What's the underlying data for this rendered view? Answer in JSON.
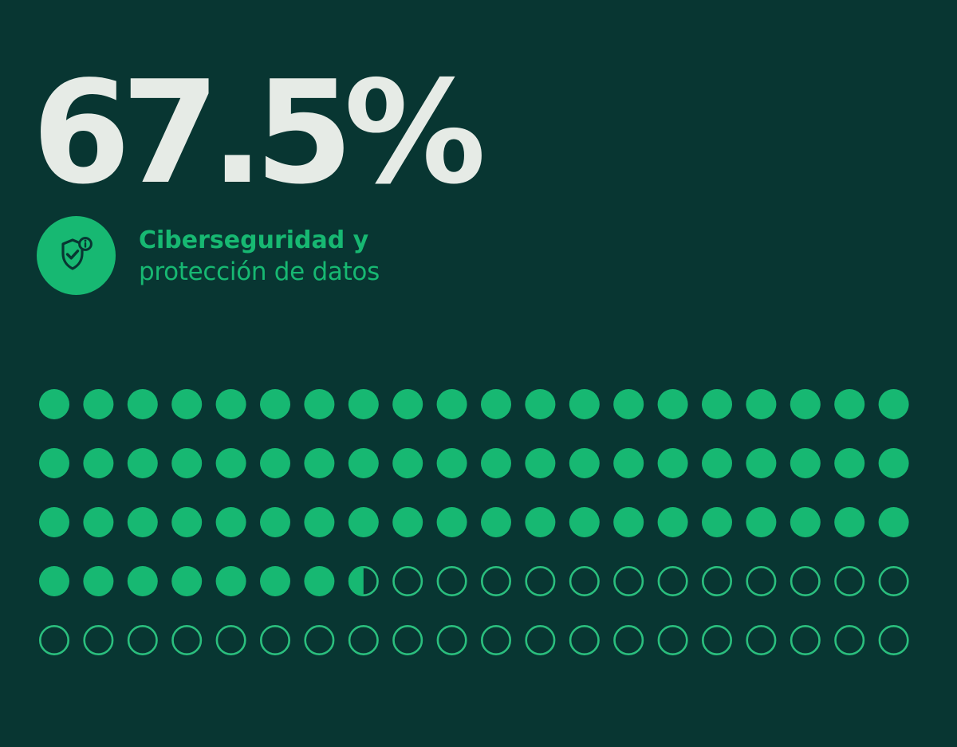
{
  "stat": {
    "value_text": "67.5%"
  },
  "category": {
    "icon": "shield-check-icon",
    "line1": "Ciberseguridad y",
    "line2": "protección de datos"
  },
  "colors": {
    "background": "#083632",
    "accent": "#17b872",
    "value_text": "#e6ebe6",
    "dot_outline": "#2bbf7e"
  },
  "chart_data": {
    "type": "waffle",
    "value_percent": 67.5,
    "rows": 5,
    "columns": 20,
    "total_units": 100,
    "title": "",
    "filled_color": "#17b872",
    "empty_style": "outline"
  }
}
